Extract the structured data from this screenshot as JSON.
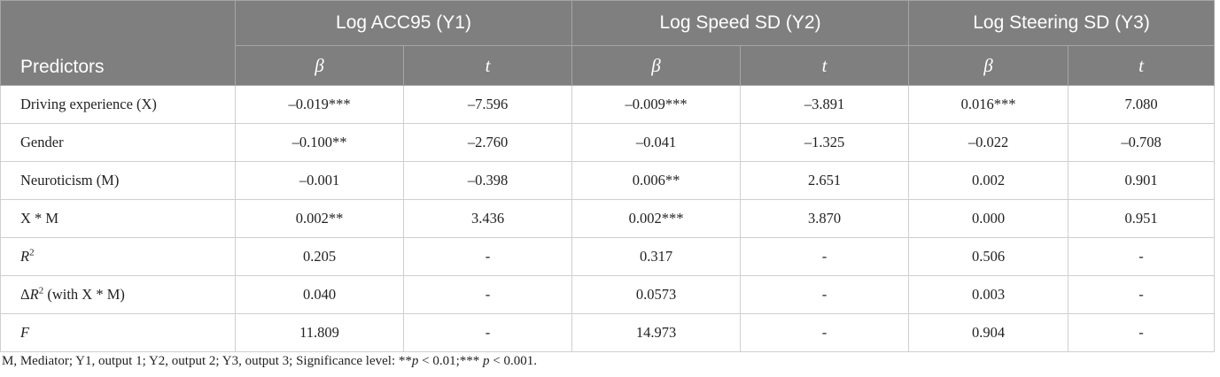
{
  "table": {
    "header": {
      "predictors": "Predictors",
      "groups": [
        "Log ACC95 (Y1)",
        "Log Speed SD (Y2)",
        "Log Steering SD (Y3)"
      ],
      "sub": [
        "β",
        "t",
        "β",
        "t",
        "β",
        "t"
      ]
    },
    "rows": [
      {
        "label": [
          {
            "text": "Driving experience (X)"
          }
        ],
        "cells": [
          "–0.019***",
          "–7.596",
          "–0.009***",
          "–3.891",
          "0.016***",
          "7.080"
        ]
      },
      {
        "label": [
          {
            "text": "Gender"
          }
        ],
        "cells": [
          "–0.100**",
          "–2.760",
          "–0.041",
          "–1.325",
          "–0.022",
          "–0.708"
        ]
      },
      {
        "label": [
          {
            "text": "Neuroticism (M)"
          }
        ],
        "cells": [
          "–0.001",
          "–0.398",
          "0.006**",
          "2.651",
          "0.002",
          "0.901"
        ]
      },
      {
        "label": [
          {
            "text": "X * M"
          }
        ],
        "cells": [
          "0.002**",
          "3.436",
          "0.002***",
          "3.870",
          "0.000",
          "0.951"
        ]
      },
      {
        "label": [
          {
            "text": "R",
            "style": "italic"
          },
          {
            "text": "2",
            "style": "sup"
          }
        ],
        "cells": [
          "0.205",
          "-",
          "0.317",
          "-",
          "0.506",
          "-"
        ]
      },
      {
        "label": [
          {
            "text": "Δ"
          },
          {
            "text": "R",
            "style": "italic"
          },
          {
            "text": "2",
            "style": "sup"
          },
          {
            "text": " (with X * M)"
          }
        ],
        "cells": [
          "0.040",
          "-",
          "0.0573",
          "-",
          "0.003",
          "-"
        ]
      },
      {
        "label": [
          {
            "text": "F",
            "style": "italic"
          }
        ],
        "cells": [
          "11.809",
          "-",
          "14.973",
          "-",
          "0.904",
          "-"
        ]
      }
    ],
    "footnote": [
      {
        "text": "M, Mediator; Y1, output 1; Y2, output 2; Y3, output 3; Significance level: **"
      },
      {
        "text": "p",
        "style": "italic"
      },
      {
        "text": " < 0.01;*** "
      },
      {
        "text": "p",
        "style": "italic"
      },
      {
        "text": " < 0.001."
      }
    ]
  }
}
